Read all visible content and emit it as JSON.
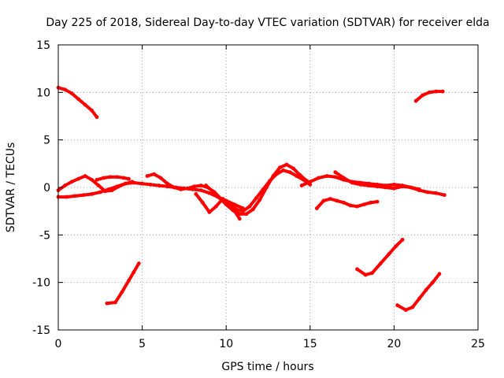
{
  "chart_data": {
    "type": "scatter",
    "title": "Day 225 of 2018, Sidereal Day-to-day VTEC variation (SDTVAR) for receiver elda",
    "xlabel": "GPS time / hours",
    "ylabel": "SDTVAR / TECUs",
    "xlim": [
      0,
      25
    ],
    "ylim": [
      -15,
      15
    ],
    "xticks": [
      0,
      5,
      10,
      15,
      20,
      25
    ],
    "yticks": [
      -15,
      -10,
      -5,
      0,
      5,
      10,
      15
    ],
    "xtick_labels": [
      "0",
      "5",
      "10",
      "15",
      "20",
      "25"
    ],
    "ytick_labels": [
      "-15",
      "-10",
      "-5",
      "0",
      "5",
      "10",
      "15"
    ],
    "grid": true,
    "series_color": "#ff0000",
    "series": [
      {
        "name": "arc-high-left",
        "x": [
          0.0,
          0.4,
          0.8,
          1.2,
          1.6,
          2.0,
          2.3
        ],
        "y": [
          10.5,
          10.3,
          9.9,
          9.3,
          8.7,
          8.1,
          7.4
        ]
      },
      {
        "name": "arc-high-right",
        "x": [
          21.3,
          21.7,
          22.1,
          22.5,
          22.9
        ],
        "y": [
          9.1,
          9.7,
          10.0,
          10.1,
          10.1
        ]
      },
      {
        "name": "arc-low-left",
        "x": [
          2.9,
          3.4,
          3.8,
          4.2,
          4.5,
          4.8
        ],
        "y": [
          -12.2,
          -12.1,
          -11.0,
          -9.8,
          -8.9,
          -8.0
        ]
      },
      {
        "name": "arc-low-mid",
        "x": [
          17.8,
          18.3,
          18.7,
          19.2,
          19.7,
          20.1,
          20.5
        ],
        "y": [
          -8.6,
          -9.2,
          -9.0,
          -8.0,
          -7.0,
          -6.2,
          -5.5
        ]
      },
      {
        "name": "arc-low-right",
        "x": [
          20.2,
          20.7,
          21.1,
          21.5,
          21.9,
          22.3,
          22.7
        ],
        "y": [
          -12.4,
          -12.9,
          -12.6,
          -11.7,
          -10.8,
          -10.0,
          -9.1
        ]
      },
      {
        "name": "band-a",
        "x": [
          0.0,
          0.5,
          1.0,
          1.5,
          2.0,
          2.5,
          3.0,
          3.5,
          4.0,
          4.5,
          5.0,
          5.5,
          6.0,
          6.5,
          7.0,
          7.5,
          8.0,
          8.5,
          9.0,
          9.5,
          10.0,
          10.5,
          11.0
        ],
        "y": [
          -1.0,
          -1.0,
          -0.9,
          -0.8,
          -0.7,
          -0.5,
          -0.2,
          0.1,
          0.4,
          0.5,
          0.4,
          0.3,
          0.2,
          0.1,
          0.0,
          -0.1,
          -0.2,
          -0.3,
          -0.6,
          -1.0,
          -1.4,
          -1.8,
          -2.2
        ]
      },
      {
        "name": "band-b",
        "x": [
          0.0,
          0.4,
          0.8,
          1.2,
          1.6,
          2.0,
          2.4,
          2.8,
          3.2,
          3.6,
          4.0,
          4.4
        ],
        "y": [
          -0.3,
          0.2,
          0.6,
          0.9,
          1.2,
          0.8,
          0.2,
          -0.4,
          -0.3,
          0.1,
          0.4,
          0.6
        ]
      },
      {
        "name": "band-c",
        "x": [
          2.3,
          2.7,
          3.1,
          3.5,
          3.9,
          4.2
        ],
        "y": [
          0.8,
          1.0,
          1.1,
          1.1,
          1.0,
          0.9
        ]
      },
      {
        "name": "band-d",
        "x": [
          5.3,
          5.7,
          6.1,
          6.5,
          6.9,
          7.3,
          7.7,
          8.1,
          8.5,
          8.9,
          9.3,
          9.7,
          10.1,
          10.5,
          10.8
        ],
        "y": [
          1.2,
          1.4,
          1.0,
          0.4,
          0.0,
          -0.2,
          -0.1,
          0.1,
          0.2,
          0.0,
          -0.5,
          -1.2,
          -1.9,
          -2.5,
          -3.3
        ]
      },
      {
        "name": "band-e",
        "x": [
          8.8,
          9.2,
          9.6,
          10.0,
          10.4,
          10.8,
          11.2,
          11.6,
          12.0,
          12.4,
          12.8,
          13.2,
          13.6,
          14.0,
          14.4,
          14.8
        ],
        "y": [
          0.2,
          -0.4,
          -1.1,
          -1.8,
          -2.4,
          -2.8,
          -2.8,
          -2.3,
          -1.3,
          0.0,
          1.2,
          2.1,
          2.4,
          2.0,
          1.3,
          0.7
        ]
      },
      {
        "name": "band-f",
        "x": [
          8.2,
          8.6,
          9.0,
          9.4,
          9.8,
          10.2,
          10.6,
          11.0,
          11.4,
          11.8,
          12.2,
          12.6,
          13.0,
          13.4,
          13.8,
          14.2,
          14.6,
          15.0
        ],
        "y": [
          -0.7,
          -1.6,
          -2.6,
          -2.0,
          -1.2,
          -1.6,
          -2.3,
          -2.5,
          -2.0,
          -1.1,
          -0.2,
          0.7,
          1.4,
          1.8,
          1.6,
          1.2,
          0.8,
          0.3
        ]
      },
      {
        "name": "band-g",
        "x": [
          14.5,
          15.0,
          15.5,
          16.0,
          16.5,
          17.0,
          17.5,
          18.0,
          18.5,
          19.0,
          19.5,
          20.0,
          20.5,
          21.0,
          21.5,
          22.0,
          22.5,
          23.0
        ],
        "y": [
          0.2,
          0.6,
          1.0,
          1.2,
          1.1,
          0.8,
          0.6,
          0.5,
          0.4,
          0.3,
          0.2,
          0.3,
          0.2,
          0.0,
          -0.3,
          -0.5,
          -0.6,
          -0.8
        ]
      },
      {
        "name": "band-h",
        "x": [
          16.5,
          17.0,
          17.5,
          18.0,
          18.5,
          19.0,
          19.5,
          20.0,
          20.5,
          21.0,
          21.5
        ],
        "y": [
          1.6,
          1.0,
          0.5,
          0.3,
          0.2,
          0.1,
          0.0,
          -0.1,
          0.1,
          0.0,
          -0.2
        ]
      },
      {
        "name": "band-i",
        "x": [
          15.4,
          15.8,
          16.2,
          16.6,
          17.0,
          17.4,
          17.8,
          18.2,
          18.6,
          19.0
        ],
        "y": [
          -2.2,
          -1.4,
          -1.2,
          -1.4,
          -1.6,
          -1.9,
          -2.0,
          -1.8,
          -1.6,
          -1.5
        ]
      }
    ]
  }
}
